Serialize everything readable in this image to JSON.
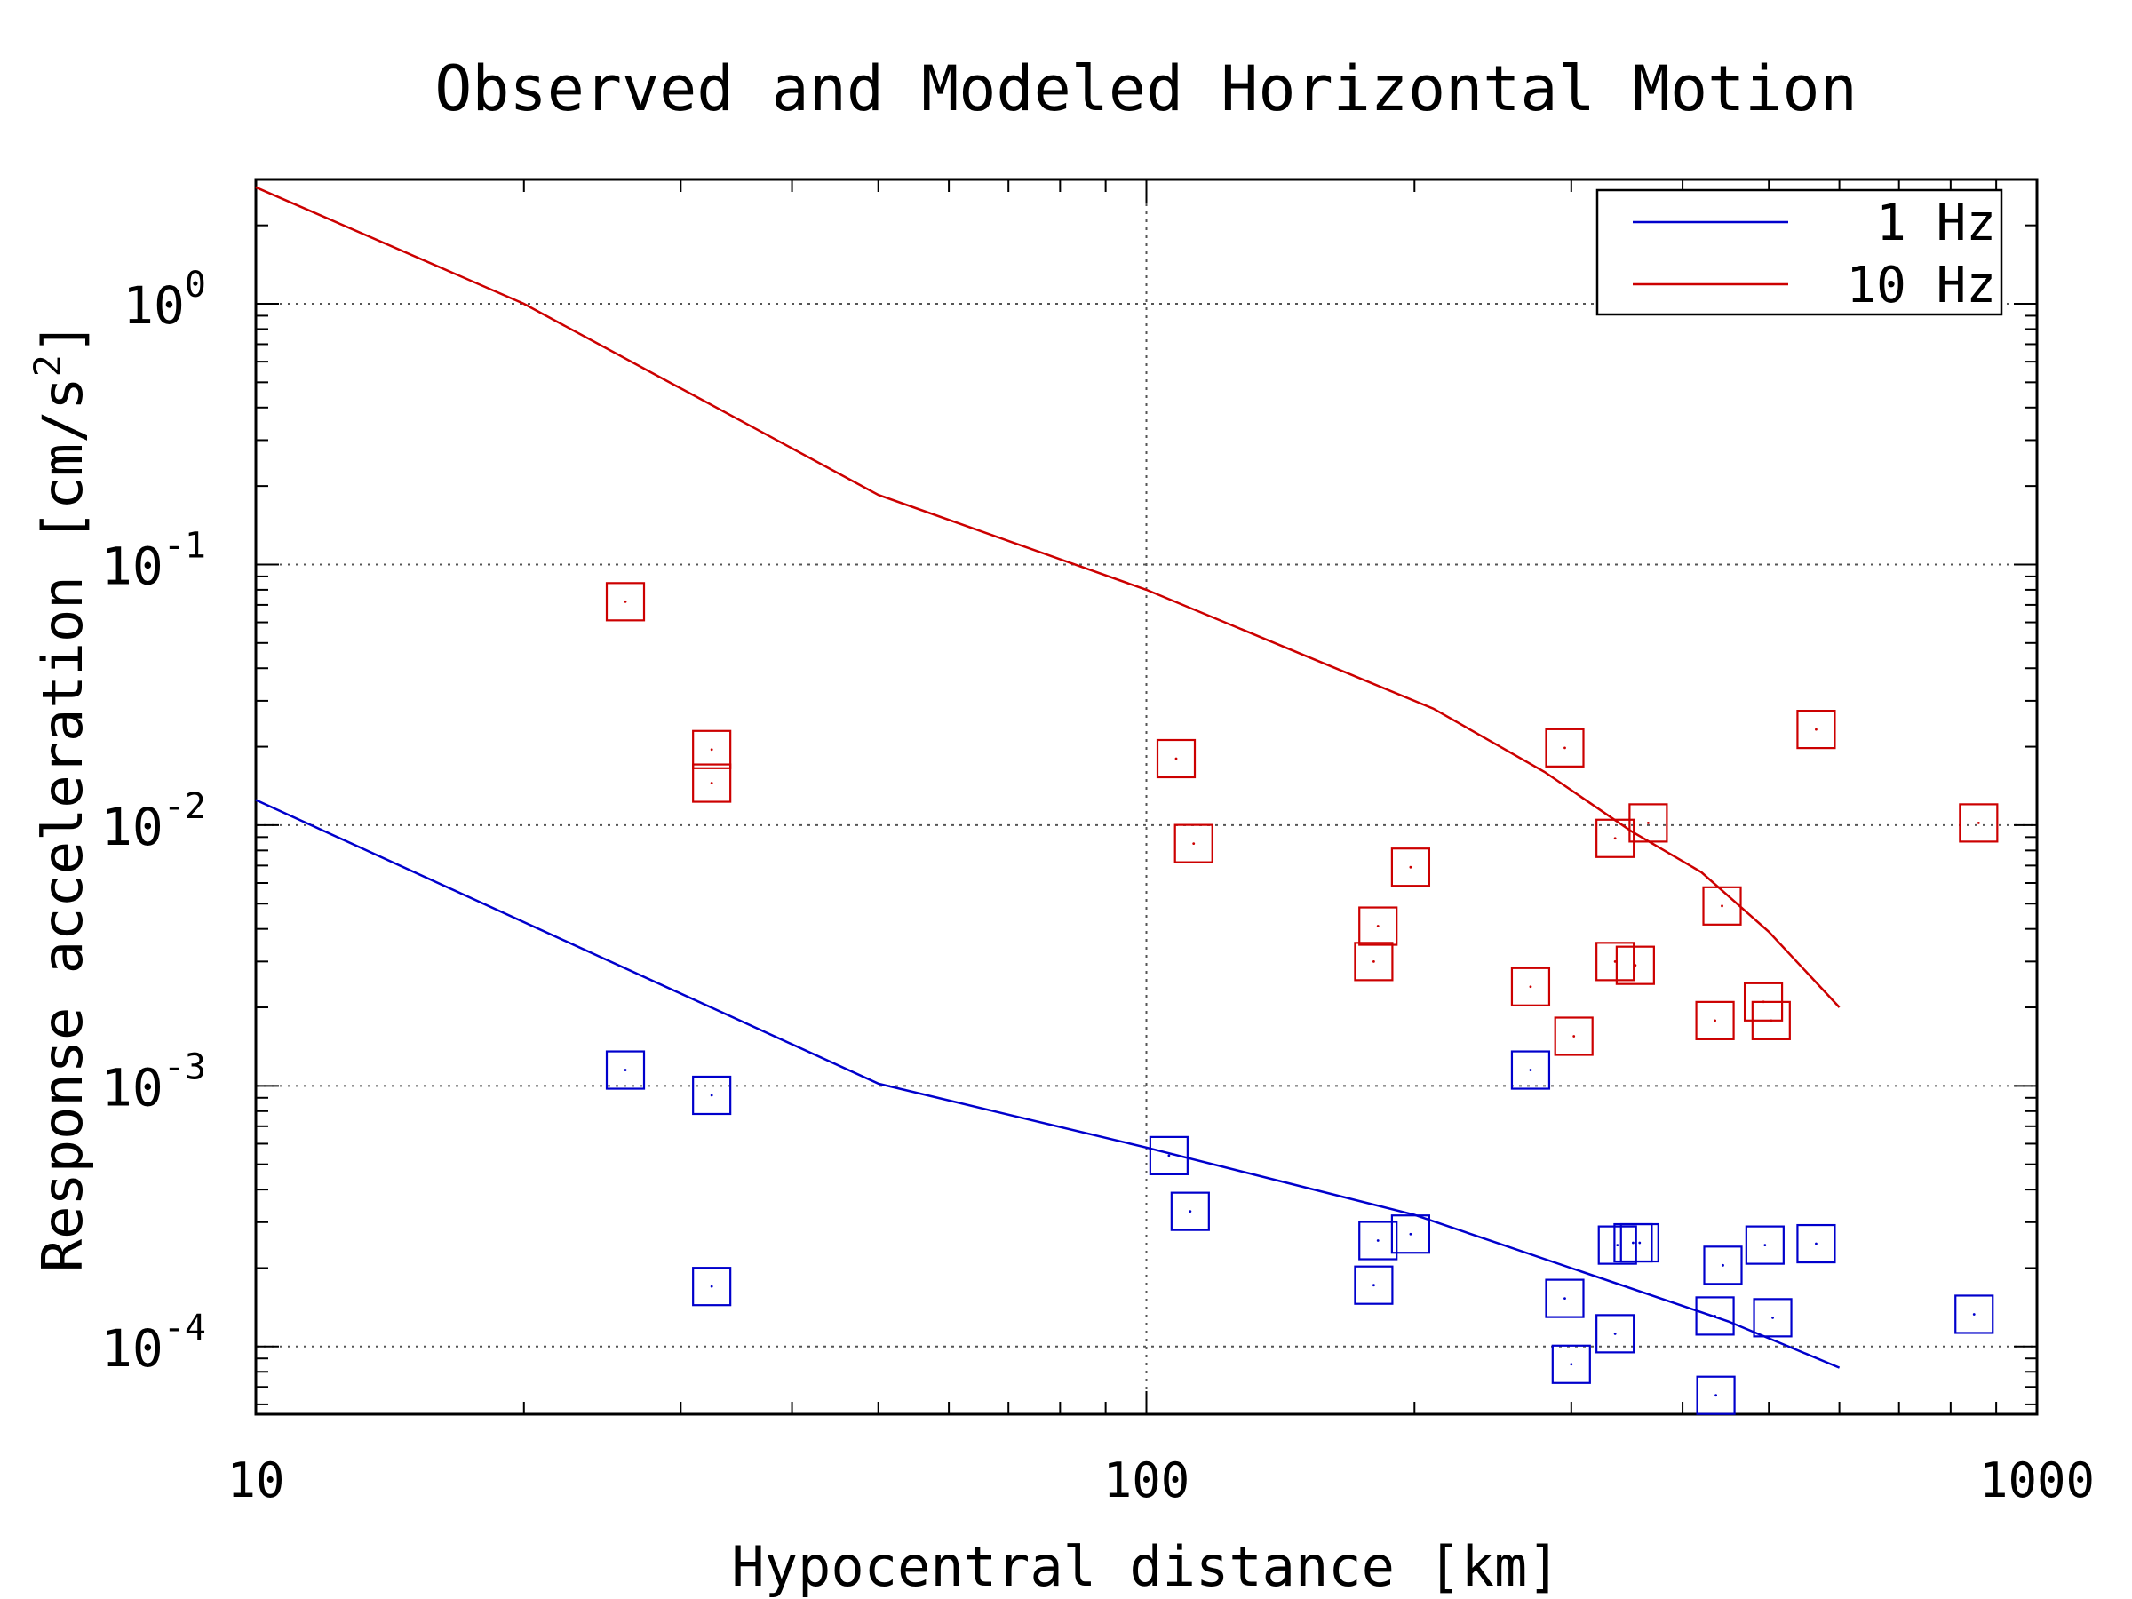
{
  "chart_data": {
    "type": "scatter",
    "title": "Observed and Modeled Horizontal Motion",
    "xlabel": "Hypocentral distance [km]",
    "ylabel": "Response acceleration [cm/s",
    "ylabel_sup": "2",
    "ylabel_end": "]",
    "x_scale": "log",
    "y_scale": "log",
    "xlim": [
      10,
      1000
    ],
    "ylim": [
      5.5e-05,
      3.0
    ],
    "x_ticks": [
      {
        "value": 10,
        "label": "10"
      },
      {
        "value": 100,
        "label": "100"
      },
      {
        "value": 1000,
        "label": "1000"
      }
    ],
    "y_ticks": [
      {
        "value": 1,
        "base": "10",
        "exp": "0"
      },
      {
        "value": 0.1,
        "base": "10",
        "exp": "-1"
      },
      {
        "value": 0.01,
        "base": "10",
        "exp": "-2"
      },
      {
        "value": 0.001,
        "base": "10",
        "exp": "-3"
      },
      {
        "value": 0.0001,
        "base": "10",
        "exp": "-4"
      }
    ],
    "grid": true,
    "legend": {
      "placement": "top-right",
      "entries": [
        {
          "label": "1 Hz",
          "color": "#0000cc"
        },
        {
          "label": "10 Hz",
          "color": "#cc0000"
        }
      ]
    },
    "series": [
      {
        "name": "1 Hz",
        "kind": "model",
        "color": "#0000cc",
        "points": [
          [
            10,
            0.0125
          ],
          [
            50,
            0.00102
          ],
          [
            100,
            0.00058
          ],
          [
            200,
            0.00032
          ],
          [
            300,
            0.0002
          ],
          [
            450,
            0.000125
          ],
          [
            600,
            8.3e-05
          ]
        ]
      },
      {
        "name": "10 Hz",
        "kind": "model",
        "color": "#cc0000",
        "points": [
          [
            10,
            2.8
          ],
          [
            20,
            1.0
          ],
          [
            50,
            0.185
          ],
          [
            100,
            0.08
          ],
          [
            150,
            0.045
          ],
          [
            210,
            0.028
          ],
          [
            280,
            0.016
          ],
          [
            350,
            0.0095
          ],
          [
            420,
            0.0066
          ],
          [
            500,
            0.0039
          ],
          [
            600,
            0.002
          ]
        ]
      },
      {
        "name": "1 Hz observed",
        "kind": "observed",
        "color": "#0000cc",
        "points": [
          [
            26,
            0.00115
          ],
          [
            32.5,
            0.00092
          ],
          [
            32.5,
            0.00017
          ],
          [
            106,
            0.00054
          ],
          [
            112,
            0.00033
          ],
          [
            180,
            0.000172
          ],
          [
            182,
            0.000255
          ],
          [
            198,
            0.00027
          ],
          [
            270,
            0.00115
          ],
          [
            295,
            0.000153
          ],
          [
            300,
            8.55e-05
          ],
          [
            336,
            0.000112
          ],
          [
            338,
            0.000245
          ],
          [
            352,
            0.00025
          ],
          [
            358,
            0.00025
          ],
          [
            435,
            0.000131
          ],
          [
            436,
            6.5e-05
          ],
          [
            444,
            0.000205
          ],
          [
            495,
            0.000245
          ],
          [
            505,
            0.000129
          ],
          [
            565,
            0.000248
          ],
          [
            850,
            0.000133
          ]
        ]
      },
      {
        "name": "10 Hz observed",
        "kind": "observed",
        "color": "#cc0000",
        "points": [
          [
            26,
            0.072
          ],
          [
            32.5,
            0.0195
          ],
          [
            32.5,
            0.0145
          ],
          [
            108,
            0.018
          ],
          [
            113,
            0.0085
          ],
          [
            180,
            0.003
          ],
          [
            182,
            0.0041
          ],
          [
            198,
            0.0069
          ],
          [
            270,
            0.0024
          ],
          [
            295,
            0.0198
          ],
          [
            302,
            0.00155
          ],
          [
            336,
            0.0089
          ],
          [
            336,
            0.003
          ],
          [
            354,
            0.0029
          ],
          [
            366,
            0.0102
          ],
          [
            435,
            0.00178
          ],
          [
            443,
            0.0049
          ],
          [
            493,
            0.0021
          ],
          [
            503,
            0.00178
          ],
          [
            565,
            0.0233
          ],
          [
            860,
            0.0102
          ]
        ]
      }
    ]
  }
}
